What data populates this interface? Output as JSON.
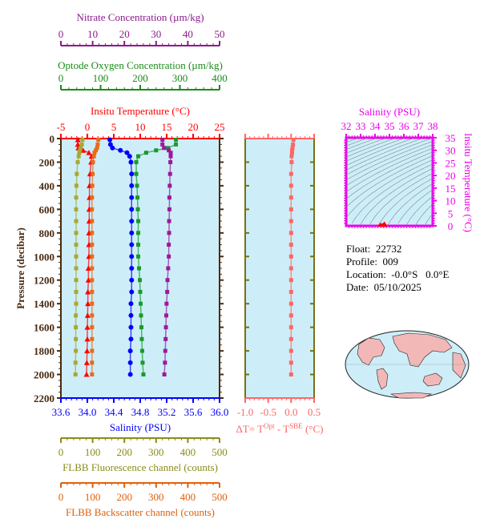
{
  "chart_data": {
    "type": "line",
    "pressure_axis": {
      "label": "Pressure (decibar)",
      "range": [
        0,
        2200
      ],
      "ticks": [
        0,
        200,
        400,
        600,
        800,
        1000,
        1200,
        1400,
        1600,
        1800,
        2000,
        2200
      ]
    },
    "axes": {
      "nitrate": {
        "label": "Nitrate Concentration (µm/kg)",
        "range": [
          0,
          50
        ],
        "ticks": [
          0,
          10,
          20,
          30,
          40,
          50
        ],
        "color": "#8b1a8b"
      },
      "oxygen": {
        "label": "Optode Oxygen Concentration (µm/kg)",
        "range": [
          0,
          400
        ],
        "ticks": [
          0,
          100,
          200,
          300,
          400
        ],
        "color": "#1a8b1a"
      },
      "temperature": {
        "label": "Insitu Temperature (°C)",
        "range": [
          -5,
          25
        ],
        "ticks": [
          -5,
          0,
          5,
          10,
          15,
          20,
          25
        ],
        "color": "#ff0000"
      },
      "salinity": {
        "label": "Salinity (PSU)",
        "range": [
          33.6,
          36.0
        ],
        "ticks": [
          "33.6",
          "34.0",
          "34.4",
          "34.8",
          "35.2",
          "35.6",
          "36.0"
        ],
        "color": "#0000ff"
      },
      "fluorescence": {
        "label": "FLBB Fluorescence channel (counts)",
        "range": [
          0,
          500
        ],
        "ticks": [
          0,
          100,
          200,
          300,
          400,
          500
        ],
        "color": "#8b8b1a"
      },
      "backscatter": {
        "label": "FLBB Backscatter channel (counts)",
        "range": [
          0,
          500
        ],
        "ticks": [
          0,
          100,
          200,
          300,
          400,
          500
        ],
        "color": "#e0600a"
      },
      "deltaT": {
        "label": "ΔT= T",
        "sup1": "Opt",
        "mid": " - T",
        "sup2": "SBE",
        "unit": " (°C)",
        "range": [
          -1.0,
          0.5
        ],
        "ticks": [
          "-1.0",
          "-0.5",
          "0.0",
          "0.5"
        ],
        "color": "#ff6666"
      }
    },
    "pressure": [
      10,
      50,
      80,
      100,
      120,
      150,
      200,
      300,
      400,
      500,
      600,
      700,
      800,
      900,
      1000,
      1100,
      1200,
      1300,
      1400,
      1500,
      1600,
      1700,
      1800,
      1900,
      2000
    ],
    "series": [
      {
        "name": "temperature",
        "color": "#ff0000",
        "marker": "triangle",
        "values": [
          -1.8,
          -1.8,
          -1.7,
          -0.8,
          0.3,
          0.8,
          0.7,
          0.5,
          0.4,
          0.4,
          0.35,
          0.35,
          0.3,
          0.3,
          0.3,
          0.2,
          0.2,
          0.1,
          0.1,
          0.05,
          0.0,
          0.0,
          -0.05,
          -0.1,
          -0.15
        ]
      },
      {
        "name": "salinity",
        "color": "#0000ff",
        "marker": "circle",
        "values": [
          34.34,
          34.35,
          34.38,
          34.5,
          34.6,
          34.64,
          34.66,
          34.67,
          34.67,
          34.67,
          34.67,
          34.67,
          34.67,
          34.67,
          34.67,
          34.67,
          34.67,
          34.67,
          34.66,
          34.66,
          34.66,
          34.66,
          34.65,
          34.65,
          34.65
        ]
      },
      {
        "name": "oxygen",
        "color": "#1a9a2a",
        "marker": "square",
        "values": [
          290,
          290,
          270,
          240,
          215,
          195,
          190,
          190,
          192,
          193,
          194,
          195,
          195,
          195,
          195,
          197,
          199,
          200,
          201,
          202,
          203,
          204,
          205,
          206,
          208
        ]
      },
      {
        "name": "nitrate",
        "color": "#9a1a9a",
        "marker": "square",
        "values": [
          32,
          32,
          32.5,
          34,
          34.6,
          34.6,
          34.5,
          34.4,
          34.3,
          34.2,
          34.2,
          34.1,
          34.1,
          34,
          34,
          33.8,
          33.6,
          33.5,
          33.3,
          33.2,
          33.1,
          33,
          32.9,
          32.8,
          32.6
        ]
      },
      {
        "name": "fluorescence",
        "color": "#a8a830",
        "marker": "square",
        "values": [
          68,
          66,
          62,
          60,
          58,
          56,
          53,
          50,
          49,
          48,
          48,
          48,
          48,
          48,
          48,
          48,
          48,
          48,
          48,
          47,
          47,
          47,
          47,
          46,
          46
        ]
      },
      {
        "name": "backscatter",
        "color": "#e86a1a",
        "marker": "square",
        "values": [
          118,
          116,
          114,
          110,
          106,
          104,
          101,
          100,
          99,
          98,
          98,
          98,
          98,
          98,
          98,
          98,
          98,
          98,
          98,
          98,
          98,
          98,
          98,
          98,
          98
        ]
      },
      {
        "name": "deltaT",
        "color": "#ff6666",
        "marker": "square",
        "values": [
          0.05,
          0.04,
          0.03,
          0.02,
          0.02,
          0.01,
          0.01,
          0.0,
          0.0,
          0.0,
          0.0,
          0.0,
          0.0,
          0.0,
          0.0,
          0.0,
          0.0,
          0.0,
          0.0,
          0.0,
          0.0,
          0.0,
          0.0,
          0.0,
          0.0
        ]
      }
    ],
    "ts_diagram": {
      "xlabel": "Salinity (PSU)",
      "xrange": [
        32,
        38
      ],
      "xticks": [
        32,
        33,
        34,
        35,
        36,
        37,
        38
      ],
      "ylabel": "Insitu Temperature (°C)",
      "yrange": [
        0,
        35
      ],
      "yticks": [
        0,
        5,
        10,
        15,
        20,
        25,
        30,
        35
      ],
      "color": "#ee00ee"
    }
  },
  "info": {
    "float": "Float:  22732",
    "profile": "Profile:  009",
    "location": "Location:  -0.0°S   0.0°E",
    "date": "Date:  05/10/2025"
  }
}
